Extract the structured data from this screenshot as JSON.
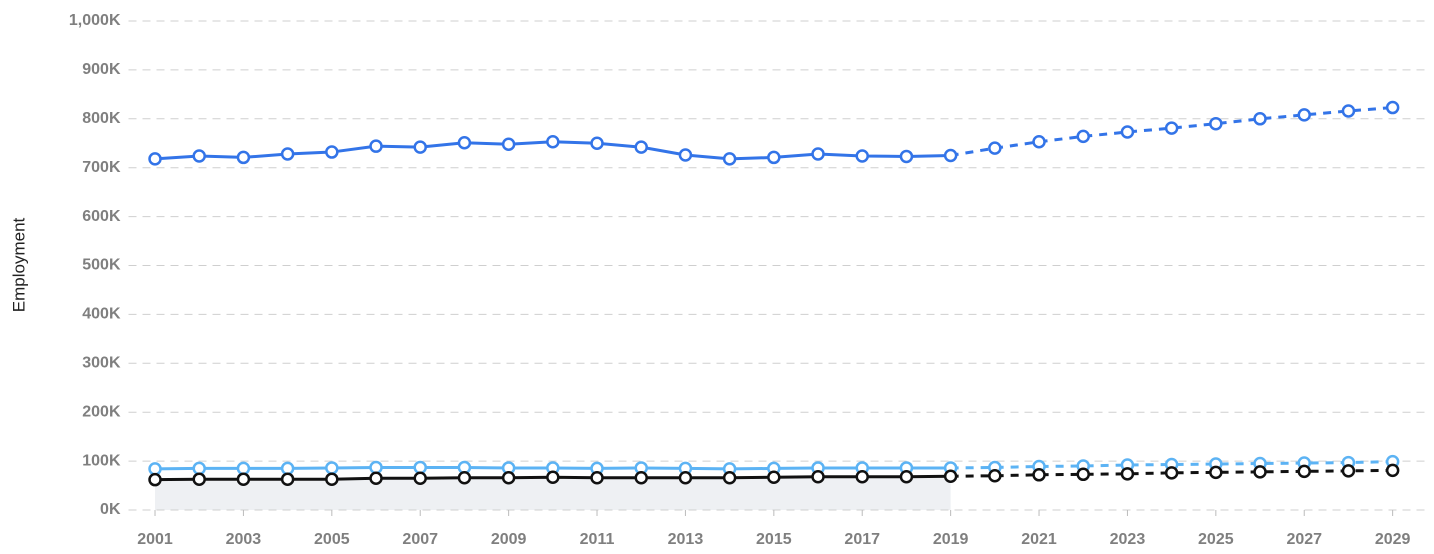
{
  "chart_data": {
    "type": "line",
    "y_label": "Employment",
    "x": [
      2001,
      2002,
      2003,
      2004,
      2005,
      2006,
      2007,
      2008,
      2009,
      2010,
      2011,
      2012,
      2013,
      2014,
      2015,
      2016,
      2017,
      2018,
      2019,
      2020,
      2021,
      2022,
      2023,
      2024,
      2025,
      2026,
      2027,
      2028,
      2029
    ],
    "forecast_start": 2019,
    "series": [
      {
        "color": "#3374e8",
        "values": [
          718000,
          724000,
          721000,
          728000,
          732000,
          744000,
          742000,
          751000,
          748000,
          753000,
          750000,
          742000,
          726000,
          718000,
          721000,
          728000,
          724000,
          723000,
          725000,
          740000,
          753000,
          764000,
          773000,
          781000,
          790000,
          800000,
          808000,
          816000,
          823000
        ]
      },
      {
        "color": "#5cb3f4",
        "values": [
          84000,
          85000,
          85000,
          85000,
          86000,
          87000,
          87000,
          87000,
          86000,
          86000,
          85000,
          86000,
          85000,
          84000,
          85000,
          86000,
          86000,
          86000,
          86000,
          87000,
          89000,
          90000,
          92000,
          93000,
          94000,
          95000,
          96000,
          97000,
          99000
        ]
      },
      {
        "color": "#111111",
        "values": [
          62000,
          63000,
          63000,
          63000,
          63000,
          65000,
          65000,
          66000,
          66000,
          67000,
          66000,
          66000,
          66000,
          66000,
          67000,
          68000,
          68000,
          68000,
          69000,
          70000,
          72000,
          73000,
          74000,
          76000,
          77000,
          78000,
          79000,
          80000,
          81000
        ]
      }
    ],
    "xlim": [
      2000.4,
      2029.8
    ],
    "xticks": [
      2001,
      2003,
      2005,
      2007,
      2009,
      2011,
      2013,
      2015,
      2017,
      2019,
      2021,
      2023,
      2025,
      2027,
      2029
    ],
    "ylim": [
      0,
      1000000
    ],
    "yticks": [
      {
        "value": 0,
        "label": "0K"
      },
      {
        "value": 100000,
        "label": "100K"
      },
      {
        "value": 200000,
        "label": "200K"
      },
      {
        "value": 300000,
        "label": "300K"
      },
      {
        "value": 400000,
        "label": "400K"
      },
      {
        "value": 500000,
        "label": "500K"
      },
      {
        "value": 600000,
        "label": "600K"
      },
      {
        "value": 700000,
        "label": "700K"
      },
      {
        "value": 800000,
        "label": "800K"
      },
      {
        "value": 900000,
        "label": "900K"
      },
      {
        "value": 1000000,
        "label": "1,000K"
      }
    ],
    "grid": true
  }
}
